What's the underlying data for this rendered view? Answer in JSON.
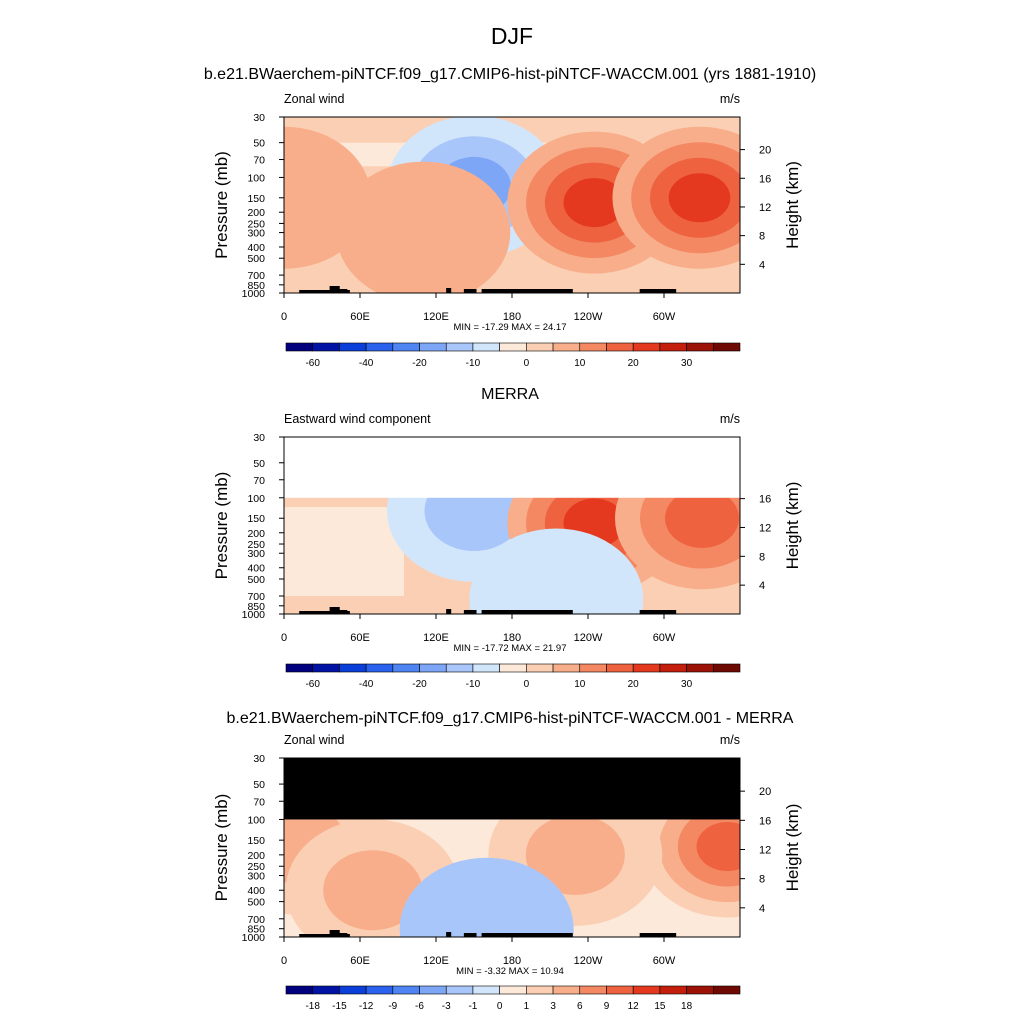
{
  "figure": {
    "title": "DJF"
  },
  "chart_data": [
    {
      "type": "heatmap",
      "title": "b.e21.BWaerchem-piNTCF.f09_g17.CMIP6-hist-piNTCF-WACCM.001 (yrs 1881-1910)",
      "left_label": "Zonal wind",
      "right_label": "m/s",
      "ylabel": "Pressure (mb)",
      "y2label": "Height (km)",
      "xticks": [
        "0",
        "60E",
        "120E",
        "180",
        "120W",
        "60W"
      ],
      "yticks": [
        30,
        50,
        70,
        100,
        150,
        200,
        250,
        300,
        400,
        500,
        700,
        850,
        1000
      ],
      "y2ticks": [
        20,
        16,
        12,
        8,
        4
      ],
      "stats": "MIN = -17.29  MAX =  24.17",
      "min": -17.29,
      "max": 24.17,
      "levels": [
        -70,
        -60,
        -50,
        -40,
        -30,
        -20,
        -15,
        -10,
        -5,
        0,
        5,
        10,
        15,
        20,
        25,
        30,
        35
      ],
      "colorbar_labels": [
        "-60",
        "-40",
        "-20",
        "-10",
        "0",
        "10",
        "20",
        "30"
      ],
      "data_top_pressure": 30,
      "jets": [
        {
          "lon": 150,
          "pressure": 120,
          "value": -15
        },
        {
          "lon": 245,
          "pressure": 165,
          "value": 22
        },
        {
          "lon": 328,
          "pressure": 150,
          "value": 21
        },
        {
          "lon": 0,
          "pressure": 150,
          "value": 5
        },
        {
          "lon": 110,
          "pressure": 300,
          "value": 7
        }
      ]
    },
    {
      "type": "heatmap",
      "title": "MERRA",
      "left_label": "Eastward wind component",
      "right_label": "m/s",
      "ylabel": "Pressure (mb)",
      "y2label": "Height (km)",
      "xticks": [
        "0",
        "60E",
        "120E",
        "180",
        "120W",
        "60W"
      ],
      "yticks": [
        30,
        50,
        70,
        100,
        150,
        200,
        250,
        300,
        400,
        500,
        700,
        850,
        1000
      ],
      "y2ticks": [
        16,
        12,
        8,
        4
      ],
      "stats": "MIN = -17.72  MAX =  21.97",
      "min": -17.72,
      "max": 21.97,
      "levels": [
        -70,
        -60,
        -50,
        -40,
        -30,
        -20,
        -15,
        -10,
        -5,
        0,
        5,
        10,
        15,
        20,
        25,
        30,
        35
      ],
      "colorbar_labels": [
        "-60",
        "-40",
        "-20",
        "-10",
        "0",
        "10",
        "20",
        "30"
      ],
      "data_top_pressure": 100,
      "jets": [
        {
          "lon": 150,
          "pressure": 130,
          "value": -14
        },
        {
          "lon": 245,
          "pressure": 165,
          "value": 21
        },
        {
          "lon": 330,
          "pressure": 150,
          "value": 15
        },
        {
          "lon": 215,
          "pressure": 750,
          "value": -7
        }
      ]
    },
    {
      "type": "heatmap",
      "title": "b.e21.BWaerchem-piNTCF.f09_g17.CMIP6-hist-piNTCF-WACCM.001 - MERRA",
      "left_label": "Zonal wind",
      "right_label": "m/s",
      "ylabel": "Pressure (mb)",
      "y2label": "Height (km)",
      "xticks": [
        "0",
        "60E",
        "120E",
        "180",
        "120W",
        "60W"
      ],
      "yticks": [
        30,
        50,
        70,
        100,
        150,
        200,
        250,
        300,
        400,
        500,
        700,
        850,
        1000
      ],
      "y2ticks": [
        20,
        16,
        12,
        8,
        4
      ],
      "stats": "MIN = -3.32  MAX = 10.94",
      "min": -3.32,
      "max": 10.94,
      "levels": [
        -21,
        -18,
        -15,
        -12,
        -9,
        -6,
        -3,
        -1,
        0,
        1,
        3,
        6,
        9,
        12,
        15,
        18,
        21
      ],
      "colorbar_labels": [
        "-18",
        "-15",
        "-12",
        "-9",
        "-6",
        "-3",
        "-1",
        "0",
        "1",
        "3",
        "6",
        "9",
        "12",
        "15",
        "18"
      ],
      "masked_above_pressure": 100,
      "jets": [
        {
          "lon": 350,
          "pressure": 170,
          "value": 10
        },
        {
          "lon": 10,
          "pressure": 160,
          "value": 5
        },
        {
          "lon": 70,
          "pressure": 400,
          "value": 4
        },
        {
          "lon": 230,
          "pressure": 200,
          "value": 4
        },
        {
          "lon": 160,
          "pressure": 850,
          "value": -2
        }
      ]
    }
  ],
  "palette": {
    "neg": [
      "#00007e",
      "#0013a5",
      "#0a3fd9",
      "#2a62ee",
      "#4f84f3",
      "#7ea6f7",
      "#a9c6fa",
      "#d2e6fb"
    ],
    "pos": [
      "#fde9d9",
      "#fbcfb4",
      "#f8ae8a",
      "#f38863",
      "#ee6240",
      "#e4391f",
      "#c41e0c",
      "#9c1207",
      "#6e0904"
    ]
  }
}
